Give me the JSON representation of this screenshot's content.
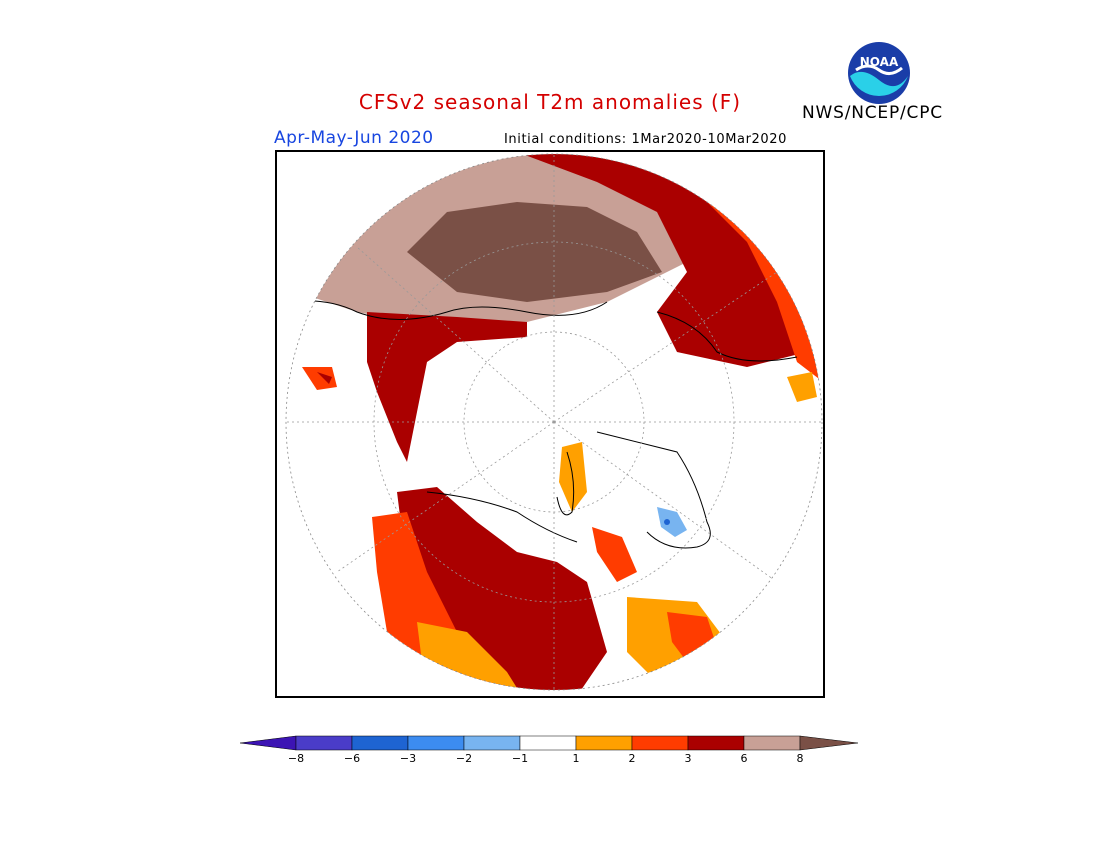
{
  "header": {
    "title": "CFSv2 seasonal T2m anomalies (F)",
    "period": "Apr-May-Jun 2020",
    "initial_conditions": "Initial conditions: 1Mar2020-10Mar2020",
    "agency": "NWS/NCEP/CPC",
    "logo_text": "NOAA"
  },
  "colorbar": {
    "labels": [
      "-8",
      "-6",
      "-3",
      "-2",
      "-1",
      "1",
      "2",
      "3",
      "6",
      "8"
    ],
    "colors": [
      "#3c14b4",
      "#4a3cc8",
      "#1e64d2",
      "#3c8cf0",
      "#78b4f0",
      "#ffffff",
      "#ffa000",
      "#ff3c00",
      "#aa0000",
      "#c8a096",
      "#7a5046"
    ]
  },
  "map": {
    "projection": "north-polar-stereographic",
    "colors": {
      "brown": "#7a5046",
      "tan": "#c8a096",
      "dark_red": "#aa0000",
      "red_orange": "#ff3c00",
      "orange": "#ffa000",
      "light_blue": "#78b4f0",
      "blue": "#1e64d2"
    }
  }
}
